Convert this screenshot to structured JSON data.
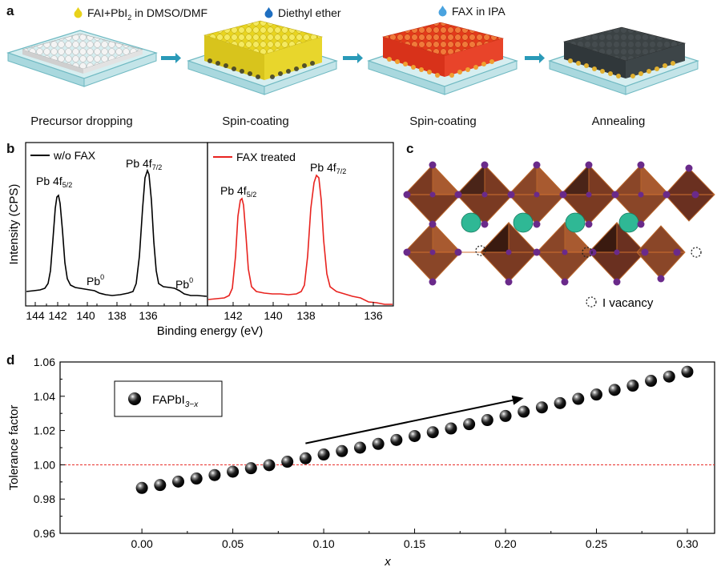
{
  "panel_a": {
    "letter": "a",
    "legend": {
      "fai": "FAI+PbI",
      "fai_sub": "2",
      "fai_suffix": " in DMSO/DMF",
      "ether": "Diethyl ether",
      "fax": "FAX in IPA"
    },
    "stages": [
      "Precursor dropping",
      "Spin-coating",
      "Spin-coating",
      "Annealing"
    ],
    "colors": {
      "fai_drop": "#e8d21a",
      "ether_drop": "#1f6fc1",
      "fax_drop": "#4aa3df",
      "arrow": "#2a9ab8",
      "glass": "#cfe9ec",
      "glass_edge": "#6fb9c2"
    }
  },
  "panel_b": {
    "letter": "b",
    "left": {
      "legend": "w/o FAX",
      "line_color": "#000000",
      "peak1_base": "Pb 4f",
      "peak1_sub": "5/2",
      "peak2_base": "Pb 4f",
      "peak2_sub": "7/2",
      "pb0_a": "Pb",
      "pb0_a_sup": "0",
      "pb0_b": "Pb",
      "pb0_b_sup": "0",
      "ticks": [
        "144",
        "142",
        "140",
        "138",
        "136"
      ]
    },
    "right": {
      "legend": "FAX treated",
      "line_color": "#e8231f",
      "peak1_base": "Pb 4f",
      "peak1_sub": "5/2",
      "peak2_base": "Pb 4f",
      "peak2_sub": "7/2",
      "ticks": [
        "142",
        "140",
        "138",
        "136"
      ]
    },
    "ylabel": "Intensity (CPS)",
    "xlabel": "Binding energy (eV)"
  },
  "panel_c": {
    "letter": "c",
    "legend": "I vacancy",
    "colors": {
      "octahedron": "#8a4a2a",
      "octahedron_dark": "#4a2418",
      "iodine": "#6a2a8a",
      "cation": "#2fb895"
    }
  },
  "chart_data": {
    "type": "scatter",
    "panel_letter": "d",
    "title": "",
    "xlabel": "x",
    "ylabel": "Tolerance factor",
    "xlim": [
      -0.045,
      0.315
    ],
    "ylim": [
      0.96,
      1.06
    ],
    "xticks": [
      "0.00",
      "0.05",
      "0.10",
      "0.15",
      "0.20",
      "0.25",
      "0.30"
    ],
    "xtick_values": [
      0.0,
      0.05,
      0.1,
      0.15,
      0.2,
      0.25,
      0.3
    ],
    "yticks": [
      "0.96",
      "0.98",
      "1.00",
      "1.02",
      "1.04",
      "1.06"
    ],
    "ytick_values": [
      0.96,
      0.98,
      1.0,
      1.02,
      1.04,
      1.06
    ],
    "reference_line": 1.0,
    "reference_color": "#e8231f",
    "legend": {
      "label": "FAPbI",
      "sub": "3−x",
      "position": "top-left"
    },
    "series": [
      {
        "name": "FAPbI3-x",
        "x": [
          0.0,
          0.01,
          0.02,
          0.03,
          0.04,
          0.05,
          0.06,
          0.07,
          0.08,
          0.09,
          0.1,
          0.11,
          0.12,
          0.13,
          0.14,
          0.15,
          0.16,
          0.17,
          0.18,
          0.19,
          0.2,
          0.21,
          0.22,
          0.23,
          0.24,
          0.25,
          0.26,
          0.27,
          0.28,
          0.29,
          0.3
        ],
        "y": [
          0.9865,
          0.9882,
          0.9902,
          0.992,
          0.994,
          0.996,
          0.998,
          0.9998,
          1.0018,
          1.0038,
          1.006,
          1.008,
          1.01,
          1.0122,
          1.0145,
          1.0168,
          1.019,
          1.0212,
          1.0237,
          1.0261,
          1.0285,
          1.031,
          1.0335,
          1.036,
          1.0385,
          1.041,
          1.0437,
          1.0462,
          1.049,
          1.0515,
          1.0543
        ]
      }
    ],
    "trend_arrow": {
      "from": [
        0.09,
        1.0125
      ],
      "to": [
        0.21,
        1.039
      ]
    }
  }
}
